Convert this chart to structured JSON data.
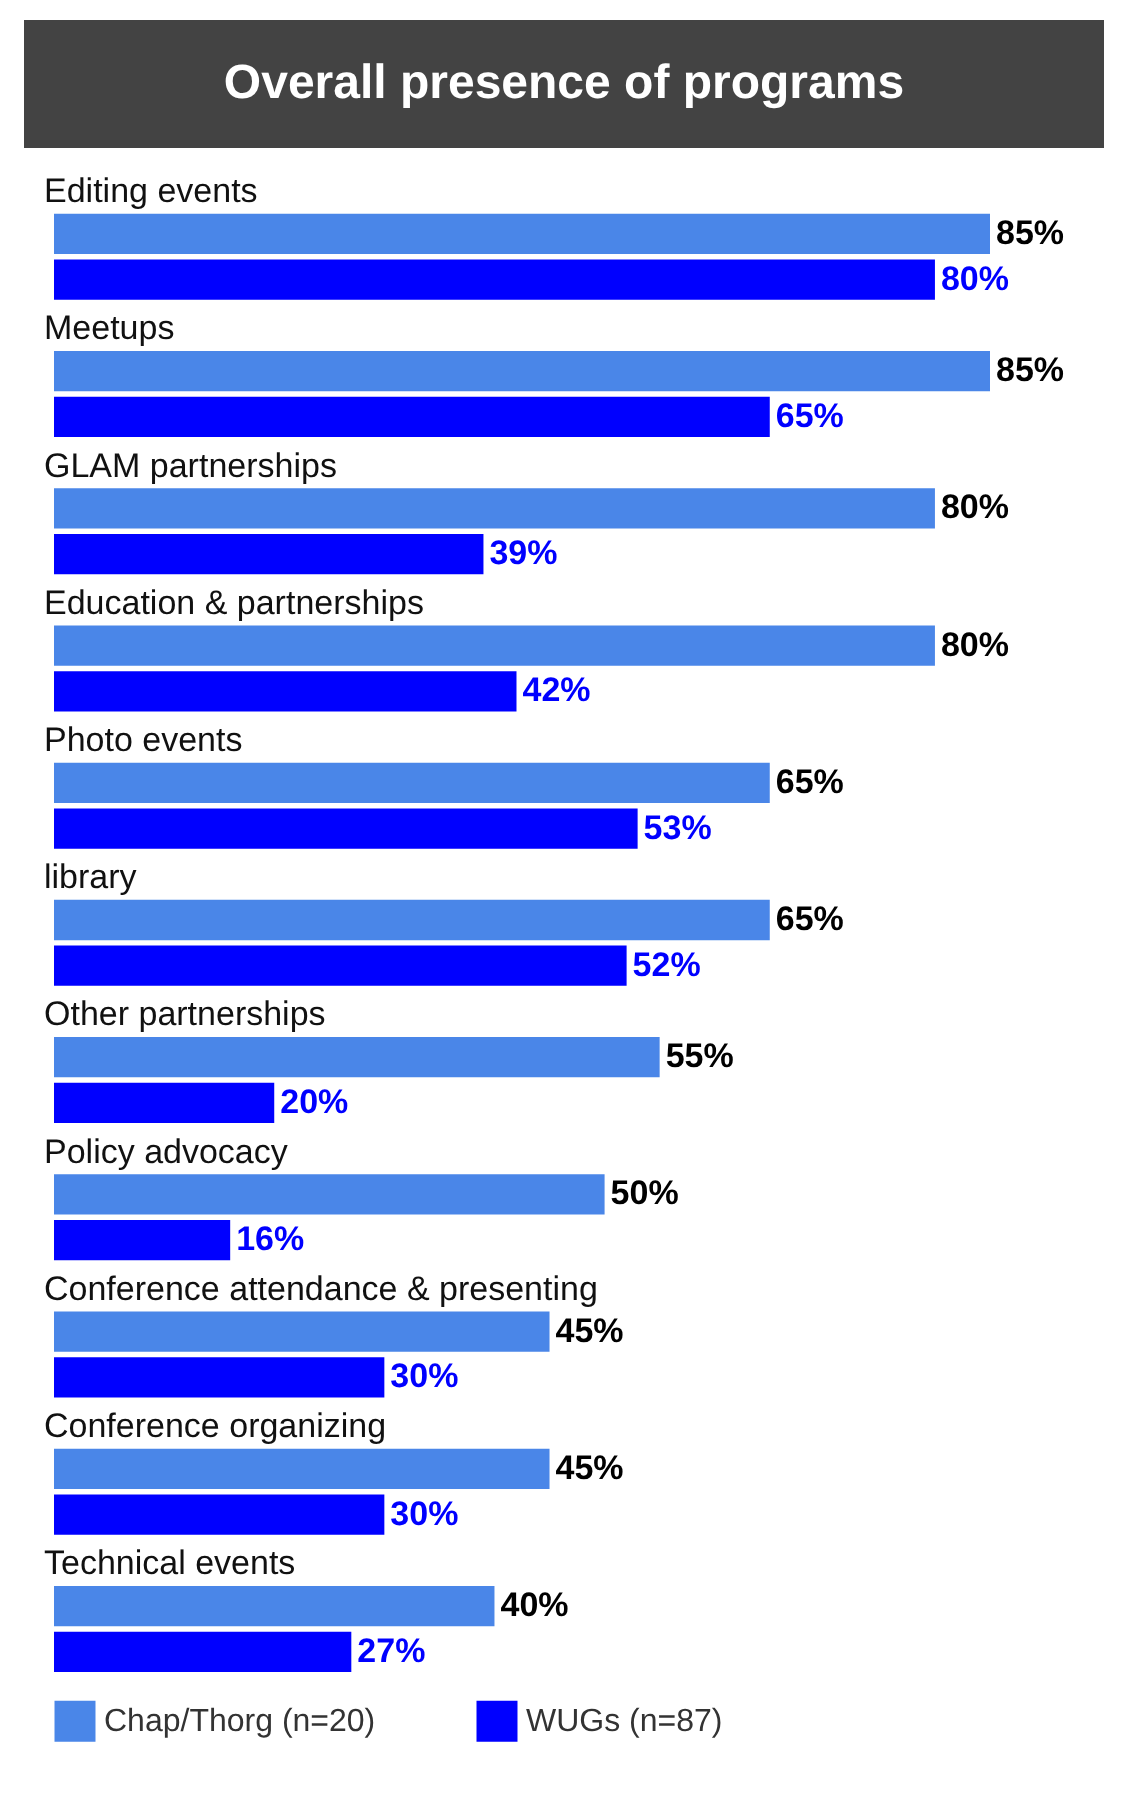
{
  "chart_data": {
    "type": "bar",
    "orientation": "horizontal",
    "title": "Overall presence of programs",
    "categories": [
      "Editing events",
      "Meetups",
      "GLAM partnerships",
      "Education & partnerships",
      "Photo events",
      "library",
      "Other partnerships",
      "Policy advocacy",
      "Conference attendance & presenting",
      "Conference organizing",
      "Technical events"
    ],
    "series": [
      {
        "name": "Chap/Thorg (n=20)",
        "color": "#4a86e8",
        "values": [
          85,
          85,
          80,
          80,
          65,
          65,
          55,
          50,
          45,
          45,
          40
        ],
        "value_labels": [
          "85%",
          "85%",
          "80%",
          "80%",
          "65%",
          "65%",
          "55%",
          "50%",
          "45%",
          "45%",
          "40%"
        ]
      },
      {
        "name": "WUGs (n=87)",
        "color": "#0000ff",
        "values": [
          80,
          65,
          39,
          42,
          53,
          52,
          20,
          16,
          30,
          30,
          27
        ],
        "value_labels": [
          "80%",
          "65%",
          "39%",
          "42%",
          "53%",
          "52%",
          "20%",
          "16%",
          "30%",
          "30%",
          "27%"
        ]
      }
    ],
    "legend": "bottom"
  }
}
